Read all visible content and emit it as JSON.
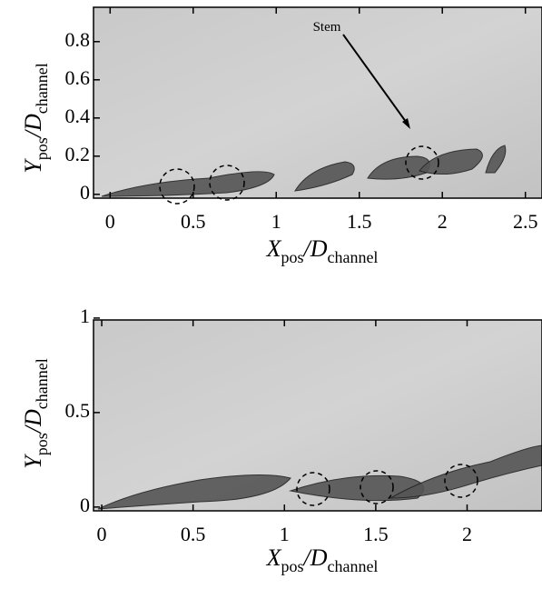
{
  "chart_data": [
    {
      "type": "image",
      "xlim": [
        -0.1,
        2.6
      ],
      "xticks": [
        0,
        0.5,
        1,
        1.5,
        2,
        2.5
      ],
      "ylim": [
        -0.02,
        0.98
      ],
      "yticks": [
        0,
        0.2,
        0.4,
        0.6,
        0.8
      ],
      "xlabel": [
        "X",
        "pos",
        "/D",
        "channel"
      ],
      "ylabel": [
        "Y",
        "pos",
        "/D",
        "channel"
      ],
      "annotation": "Stem"
    },
    {
      "type": "image",
      "xlim": [
        -0.045,
        2.41
      ],
      "xticks": [
        0,
        0.5,
        1,
        1.5,
        2
      ],
      "ylim": [
        -0.02,
        0.99
      ],
      "yticks": [
        0,
        0.5,
        1
      ],
      "xlabel": [
        "X",
        "pos",
        "/D",
        "channel"
      ],
      "ylabel": [
        "Y",
        "pos",
        "/D",
        "channel"
      ]
    }
  ]
}
